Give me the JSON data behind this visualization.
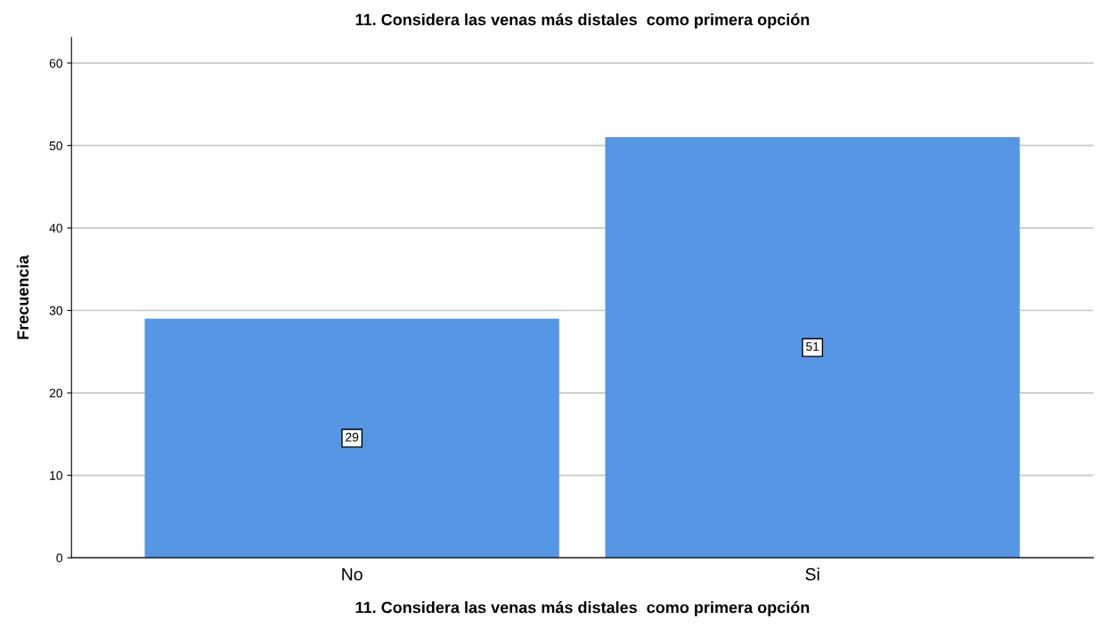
{
  "chart_data": {
    "type": "bar",
    "title": "11. Considera las venas más distales  como primera opción",
    "xlabel": "11. Considera las venas más distales  como primera opción",
    "ylabel": "Frecuencia",
    "categories": [
      "No",
      "Si"
    ],
    "values": [
      29,
      51
    ],
    "color": "#5596e5",
    "ylim": [
      0,
      63.1
    ],
    "yticks": [
      0,
      10,
      20,
      30,
      40,
      50,
      60
    ],
    "grid": "y",
    "data_labels": true
  }
}
